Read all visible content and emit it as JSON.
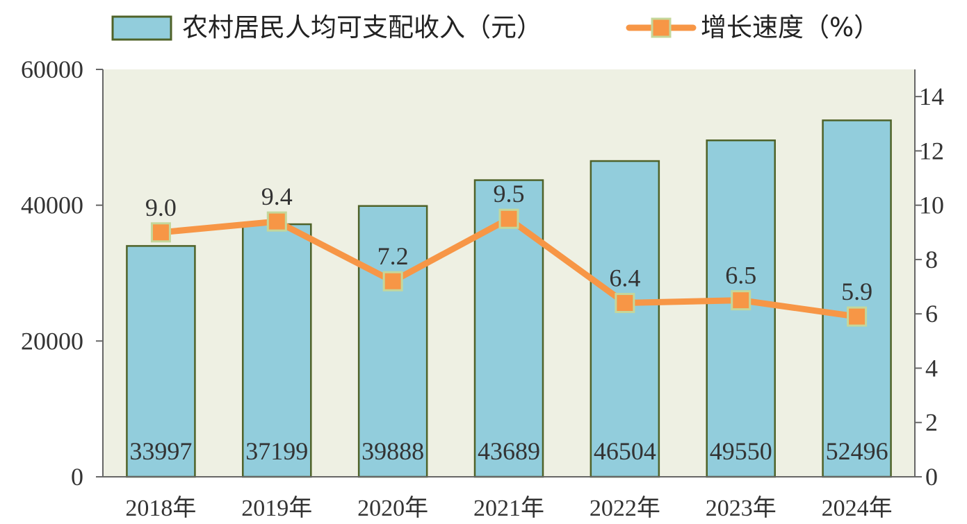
{
  "legend": {
    "bar_label": "农村居民人均可支配收入（元）",
    "line_label": "增长速度（%）"
  },
  "colors": {
    "plot_background": "#eef0e3",
    "bar_fill": "#92cddc",
    "bar_stroke": "#4f6228",
    "line": "#f79646",
    "marker_fill": "#f79646",
    "marker_stroke": "#c4d79b",
    "bar_value_text": "#ffffff"
  },
  "chart_data": {
    "type": "bar",
    "categories": [
      "2018年",
      "2019年",
      "2020年",
      "2021年",
      "2022年",
      "2023年",
      "2024年"
    ],
    "series": [
      {
        "name": "农村居民人均可支配收入（元）",
        "type": "bar",
        "axis": "left",
        "values": [
          33997,
          37199,
          39888,
          43689,
          46504,
          49550,
          52496
        ],
        "value_labels": [
          "33997",
          "37199",
          "39888",
          "43689",
          "46504",
          "49550",
          "52496"
        ]
      },
      {
        "name": "增长速度（%）",
        "type": "line",
        "axis": "right",
        "values": [
          9.0,
          9.4,
          7.2,
          9.5,
          6.4,
          6.5,
          5.9
        ],
        "value_labels": [
          "9.0",
          "9.4",
          "7.2",
          "9.5",
          "6.4",
          "6.5",
          "5.9"
        ]
      }
    ],
    "left_axis": {
      "ylim": [
        0,
        60000
      ],
      "ticks": [
        "0",
        "20000",
        "40000",
        "60000"
      ]
    },
    "right_axis": {
      "ylim": [
        0,
        15
      ],
      "ticks": [
        "0",
        "2",
        "4",
        "6",
        "8",
        "10",
        "12",
        "14"
      ]
    },
    "grid": false,
    "legend_position": "top"
  }
}
